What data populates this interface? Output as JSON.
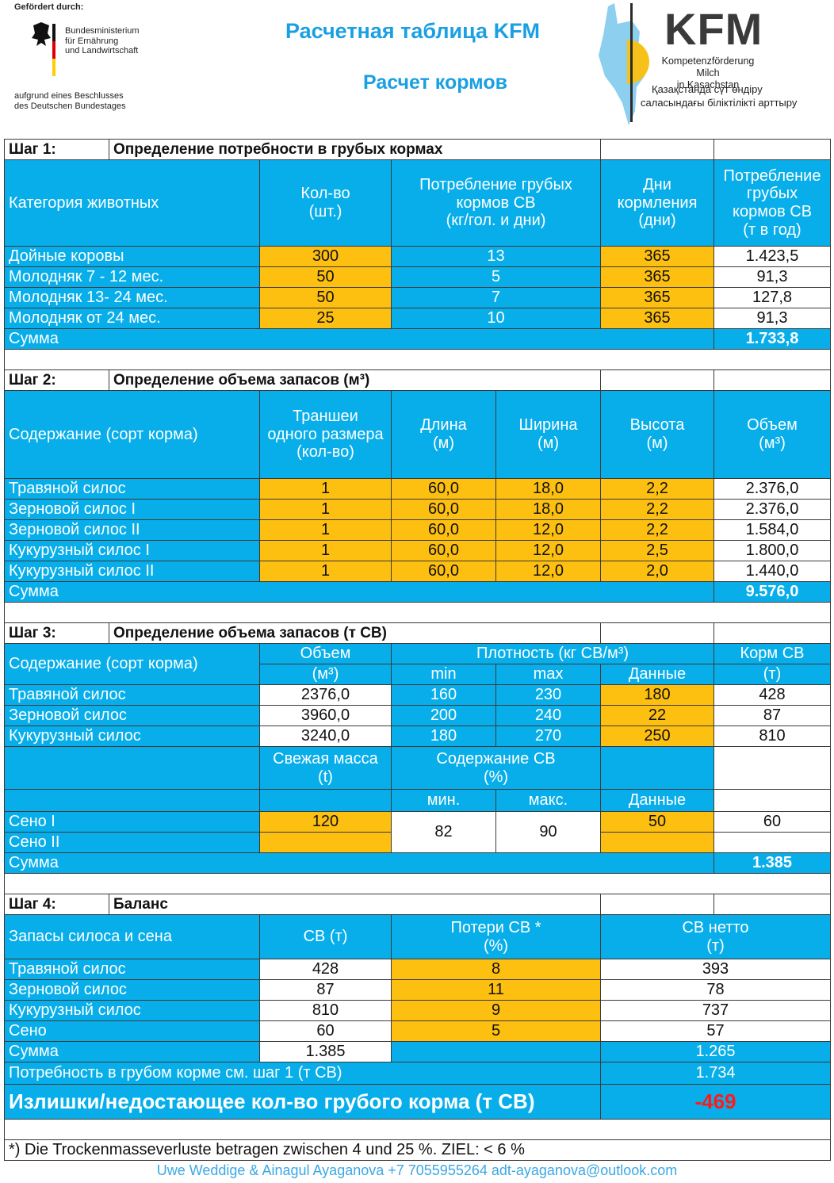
{
  "header": {
    "funded_by": "Gefördert durch:",
    "ministry": [
      "Bundesministerium",
      "für Ernährung",
      "und Landwirtschaft"
    ],
    "resolution": [
      "aufgrund eines Beschlusses",
      "des Deutschen Bundestages"
    ],
    "title": "Расчетная таблица  KFM",
    "subtitle": "Расчет кормов",
    "logo": {
      "name": "KFM",
      "lines": [
        "Kompetenzförderung Milch",
        "in Kasachstan",
        "Қазақстанда сүт өндіру",
        "саласындағы біліктілікті арттыру"
      ]
    }
  },
  "step1": {
    "label": "Шаг 1:",
    "title": "Определение потребности в грубых кормах",
    "columns": [
      "Категория животных",
      "Кол-во\n(шт.)",
      "Потребление грубых\nкормов СВ\n(кг/гол. и дни)",
      "Дни\nкормления\n(дни)",
      "Потребление\nгрубых\nкормов СВ\n(т в год)"
    ],
    "rows": [
      [
        "Дойные коровы",
        "300",
        "13",
        "365",
        "1.423,5"
      ],
      [
        "Молодняк  7 - 12 мес.",
        "50",
        "5",
        "365",
        "91,3"
      ],
      [
        "Молодняк 13- 24 мес.",
        "50",
        "7",
        "365",
        "127,8"
      ],
      [
        "Молодняк от 24 мес.",
        "25",
        "10",
        "365",
        "91,3"
      ]
    ],
    "total": {
      "label": "Сумма",
      "value": "1.733,8"
    }
  },
  "step2": {
    "label": "Шаг 2:",
    "title": "Определение объема запасов (м³)",
    "columns": [
      "Содержание (сорт корма)",
      "Траншеи\nодного размера\n(кол-во)",
      "Длина\n(м)",
      "Ширина\n(м)",
      "Высота\n(м)",
      "Объем\n(м³)"
    ],
    "rows": [
      [
        "Травяной силос",
        "1",
        "60,0",
        "18,0",
        "2,2",
        "2.376,0"
      ],
      [
        "Зерновой силос I",
        "1",
        "60,0",
        "18,0",
        "2,2",
        "2.376,0"
      ],
      [
        "Зерновой силос II",
        "1",
        "60,0",
        "12,0",
        "2,2",
        "1.584,0"
      ],
      [
        "Кукурузный силос I",
        "1",
        "60,0",
        "12,0",
        "2,5",
        "1.800,0"
      ],
      [
        "Кукурузный силос II",
        "1",
        "60,0",
        "12,0",
        "2,0",
        "1.440,0"
      ]
    ],
    "total": {
      "label": "Сумма",
      "value": "9.576,0"
    }
  },
  "step3": {
    "label": "Шаг 3:",
    "title": "Определение объема запасов (т СВ)",
    "head": {
      "category": "Содержание (сорт корма)",
      "volume": "Объем",
      "volume_unit": "(м³)",
      "density": "Плотность (кг СВ/м³)",
      "min": "min",
      "max": "max",
      "data": "Данные",
      "feed": "Корм СВ",
      "feed_unit": "(т)"
    },
    "rows": [
      [
        "Травяной силос",
        "2376,0",
        "160",
        "230",
        "180",
        "428"
      ],
      [
        "Зерновой силос",
        "3960,0",
        "200",
        "240",
        "22",
        "87"
      ],
      [
        "Кукурузный силос",
        "3240,0",
        "180",
        "270",
        "250",
        "810"
      ]
    ],
    "hay_head": {
      "fresh": "Свежая масса\n(t)",
      "dm": "Содержание СВ\n(%)",
      "min": "мин.",
      "max": "макс.",
      "data": "Данные"
    },
    "hay_rows": [
      {
        "name": "Сено I",
        "fresh": "120",
        "data": "50",
        "feed": "60"
      },
      {
        "name": "Сено II"
      }
    ],
    "hay_range": {
      "min": "82",
      "max": "90"
    },
    "total": {
      "label": "Сумма",
      "value": "1.385"
    }
  },
  "step4": {
    "label": "Шаг 4:",
    "title": "Баланс",
    "head": [
      "Запасы силоса и сена",
      "СВ (т)",
      "Потери СВ *\n(%)",
      "СВ нетто\n(т)"
    ],
    "rows": [
      [
        "Травяной силос",
        "428",
        "8",
        "393"
      ],
      [
        "Зерновой силос",
        "87",
        "11",
        "78"
      ],
      [
        "Кукурузный силос",
        "810",
        "9",
        "737"
      ],
      [
        "Сено",
        "60",
        "5",
        "57"
      ]
    ],
    "total": {
      "label": "Сумма",
      "dm": "1.385",
      "net": "1.265"
    },
    "requirement": {
      "label": "Потребность в грубом корме см. шаг 1 (т СВ)",
      "value": "1.734"
    },
    "balance": {
      "label": "Излишки/недостающее кол-во грубого корма (т СВ)",
      "value": "-469"
    }
  },
  "footnote": "*) Die Trockenmasseverluste betragen zwischen 4 und 25 %. ZIEL: < 6 %",
  "footer": "Uwe Weddige & Ainagul Ayaganova +7 7055955264 adt-ayaganova@outlook.com"
}
